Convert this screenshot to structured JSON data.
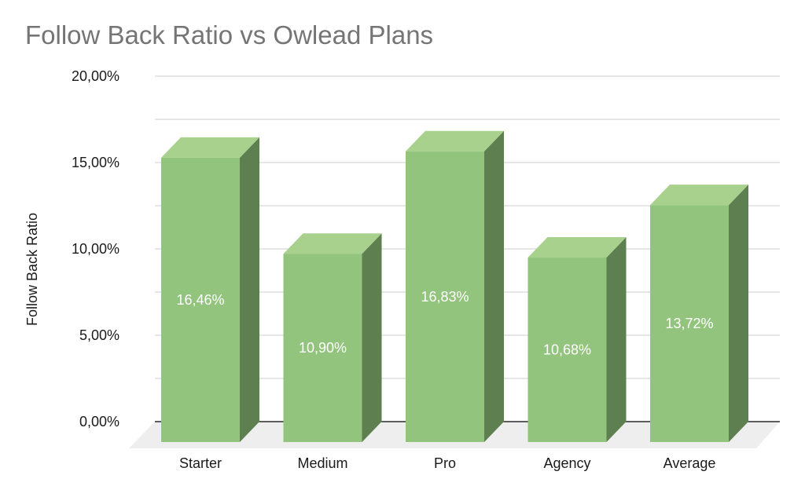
{
  "chart_data": {
    "type": "bar",
    "title": "Follow Back Ratio vs Owlead Plans",
    "xlabel": "",
    "ylabel": "Follow Back Ratio",
    "ylim": [
      0,
      20
    ],
    "yticks": [
      "0,00%",
      "5,00%",
      "10,00%",
      "15,00%",
      "20,00%"
    ],
    "ytick_values": [
      0,
      5,
      10,
      15,
      20
    ],
    "categories": [
      "Starter",
      "Medium",
      "Pro",
      "Agency",
      "Average"
    ],
    "values": [
      16.46,
      10.9,
      16.83,
      10.68,
      13.72
    ],
    "data_labels": [
      "16,46%",
      "10,90%",
      "16,83%",
      "10,68%",
      "13,72%"
    ],
    "grid": true,
    "style": "3d",
    "colors": {
      "front": "#93c47d",
      "top": "#a9d18e",
      "side": "#5e7f4f",
      "floor": "#eeeeee",
      "grid": "#cccccc"
    }
  }
}
